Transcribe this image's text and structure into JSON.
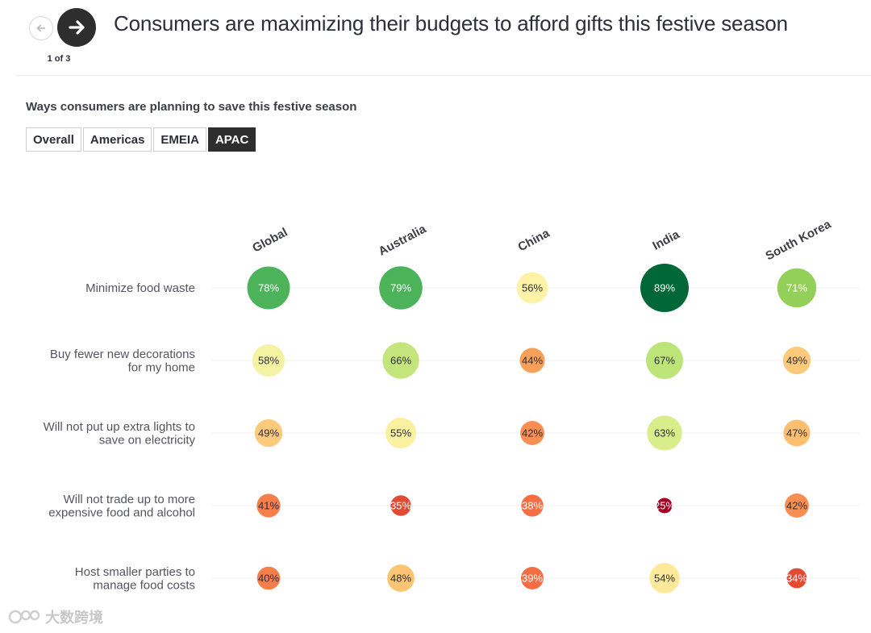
{
  "header": {
    "title": "Consumers are maximizing their budgets to afford gifts this festive season",
    "pager": "1 of 3",
    "prev_icon": "arrow-left-icon",
    "next_icon": "arrow-right-icon"
  },
  "subtitle": "Ways consumers are planning to save this festive season",
  "tabs": [
    {
      "label": "Overall",
      "active": false
    },
    {
      "label": "Americas",
      "active": false
    },
    {
      "label": "EMEIA",
      "active": false
    },
    {
      "label": "APAC",
      "active": true
    }
  ],
  "watermark": {
    "text": "大数跨境",
    "icon": "brand-logo-icon"
  },
  "chart_data": {
    "type": "bubble-matrix",
    "columns": [
      "Global",
      "Australia",
      "China",
      "India",
      "South Korea"
    ],
    "rows": [
      {
        "label_lines": [
          "Minimize food waste"
        ],
        "values": [
          78,
          79,
          56,
          89,
          71
        ]
      },
      {
        "label_lines": [
          "Buy fewer new decorations",
          "for my home"
        ],
        "values": [
          58,
          66,
          44,
          67,
          49
        ]
      },
      {
        "label_lines": [
          "Will not put up extra lights to",
          "save on electricity"
        ],
        "values": [
          49,
          55,
          42,
          63,
          47
        ]
      },
      {
        "label_lines": [
          "Will not trade up to more",
          "expensive food and alcohol"
        ],
        "values": [
          41,
          35,
          38,
          25,
          42
        ]
      },
      {
        "label_lines": [
          "Host smaller parties to",
          "manage food costs"
        ],
        "values": [
          40,
          48,
          39,
          54,
          34
        ]
      }
    ],
    "value_suffix": "%",
    "colors": {
      "25": "#a50026",
      "34": "#e34a33",
      "35": "#e34a33",
      "38": "#f46d43",
      "39": "#f46d43",
      "40": "#f67e4b",
      "41": "#f67e4b",
      "42": "#f88e52",
      "44": "#f9a058",
      "47": "#fdbf6f",
      "48": "#fdc473",
      "49": "#fdc97a",
      "54": "#fee99a",
      "55": "#fbf0a0",
      "56": "#fdf2a6",
      "58": "#f4f3a3",
      "63": "#d9ee8b",
      "66": "#c4e47c",
      "67": "#bde478",
      "71": "#92d05a",
      "78": "#4db35a",
      "79": "#4db35a",
      "89": "#006837"
    },
    "dark_text_threshold": 70,
    "grid": false
  }
}
